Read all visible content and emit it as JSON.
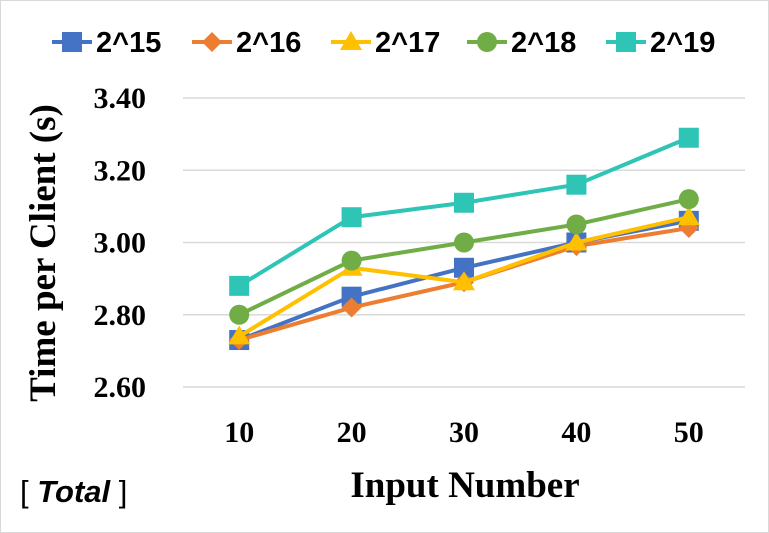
{
  "chart_data": {
    "type": "line",
    "title": "",
    "xlabel": "Input Number",
    "ylabel": "Time per Client (s)",
    "categories": [
      "10",
      "20",
      "30",
      "40",
      "50"
    ],
    "ylim": [
      2.6,
      3.4
    ],
    "yticks": [
      "2.60",
      "2.80",
      "3.00",
      "3.20",
      "3.40"
    ],
    "grid": true,
    "legend_position": "top",
    "series": [
      {
        "name": "2^15",
        "marker": "square",
        "color": "#4472C4",
        "values": [
          2.73,
          2.85,
          2.93,
          3.0,
          3.06
        ]
      },
      {
        "name": "2^16",
        "marker": "diamond",
        "color": "#ED7D31",
        "values": [
          2.73,
          2.82,
          2.89,
          2.99,
          3.04
        ]
      },
      {
        "name": "2^17",
        "marker": "triangle",
        "color": "#FFC000",
        "values": [
          2.74,
          2.93,
          2.89,
          3.0,
          3.07
        ]
      },
      {
        "name": "2^18",
        "marker": "circle",
        "color": "#70AD47",
        "values": [
          2.8,
          2.95,
          3.0,
          3.05,
          3.12
        ]
      },
      {
        "name": "2^19",
        "marker": "square",
        "color": "#2EC4B6",
        "values": [
          2.88,
          3.07,
          3.11,
          3.16,
          3.29
        ]
      }
    ]
  },
  "note": {
    "open": "[ ",
    "text": "Total",
    "close": " ]"
  }
}
